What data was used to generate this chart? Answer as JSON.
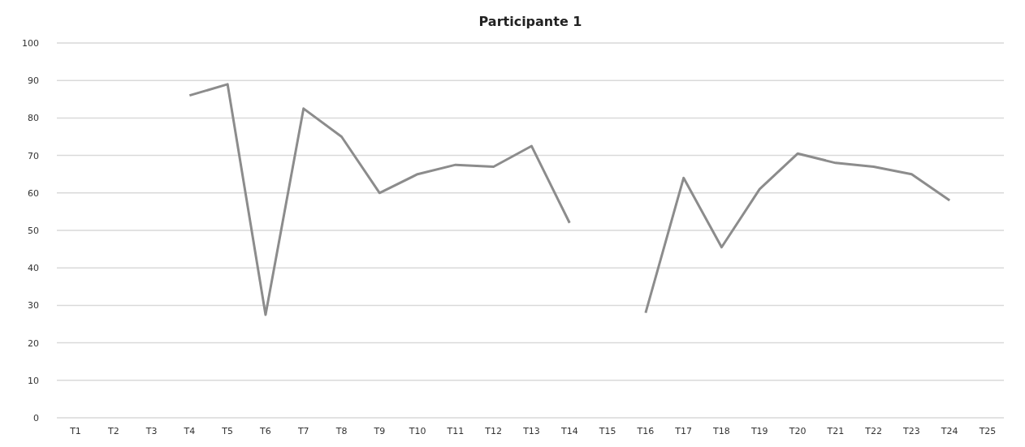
{
  "chart_data": {
    "type": "line",
    "title": "Participante 1",
    "categories": [
      "T1",
      "T2",
      "T3",
      "T4",
      "T5",
      "T6",
      "T7",
      "T8",
      "T9",
      "T10",
      "T11",
      "T12",
      "T13",
      "T14",
      "T15",
      "T16",
      "T17",
      "T18",
      "T19",
      "T20",
      "T21",
      "T22",
      "T23",
      "T24",
      "T25"
    ],
    "series": [
      {
        "color": "#8c8c8c",
        "values": [
          null,
          null,
          null,
          86,
          89,
          27.5,
          82.5,
          75,
          60,
          65,
          67.5,
          67,
          72.5,
          52,
          null,
          28,
          64,
          45.5,
          61,
          70.5,
          68,
          67,
          65,
          58,
          null
        ]
      }
    ],
    "ylim": [
      0,
      100
    ],
    "yticks": [
      0,
      10,
      20,
      30,
      40,
      50,
      60,
      70,
      80,
      90,
      100
    ],
    "grid": "y",
    "line_style": "solid"
  }
}
